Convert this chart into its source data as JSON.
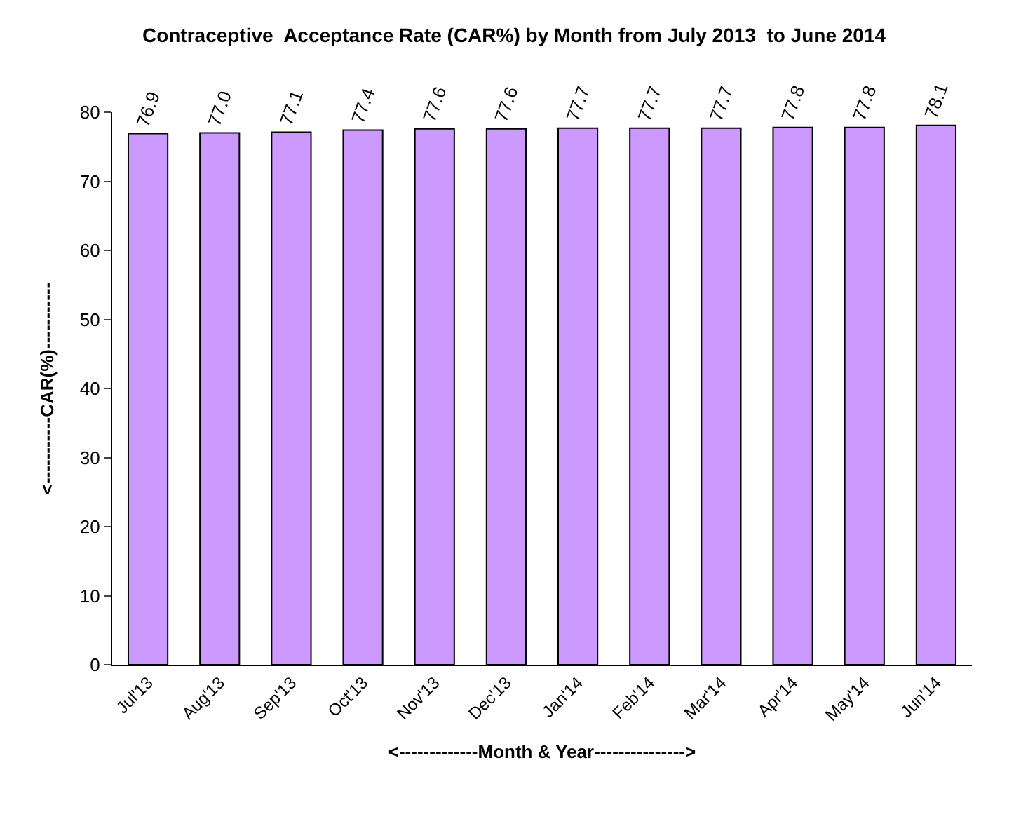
{
  "chart_data": {
    "type": "bar",
    "title": "Contraceptive  Acceptance Rate (CAR%) by Month from July 2013  to June 2014",
    "xlabel": "<-------------Month & Year--------------->",
    "ylabel": "<-----------CAR(%)-----------",
    "categories": [
      "Jul'13",
      "Aug'13",
      "Sep'13",
      "Oct'13",
      "Nov'13",
      "Dec'13",
      "Jan'14",
      "Feb'14",
      "Mar'14",
      "Apr'14",
      "May'14",
      "Jun'14"
    ],
    "values": [
      76.9,
      77.0,
      77.1,
      77.4,
      77.6,
      77.6,
      77.7,
      77.7,
      77.7,
      77.8,
      77.8,
      78.1
    ],
    "value_labels": [
      "76.9",
      "77.0",
      "77.1",
      "77.4",
      "77.6",
      "77.6",
      "77.7",
      "77.7",
      "77.7",
      "77.8",
      "77.8",
      "78.1"
    ],
    "color": "#cc99ff",
    "ylim": [
      0,
      80
    ],
    "yticks": [
      0,
      10,
      20,
      30,
      40,
      50,
      60,
      70,
      80
    ],
    "legend": false
  }
}
